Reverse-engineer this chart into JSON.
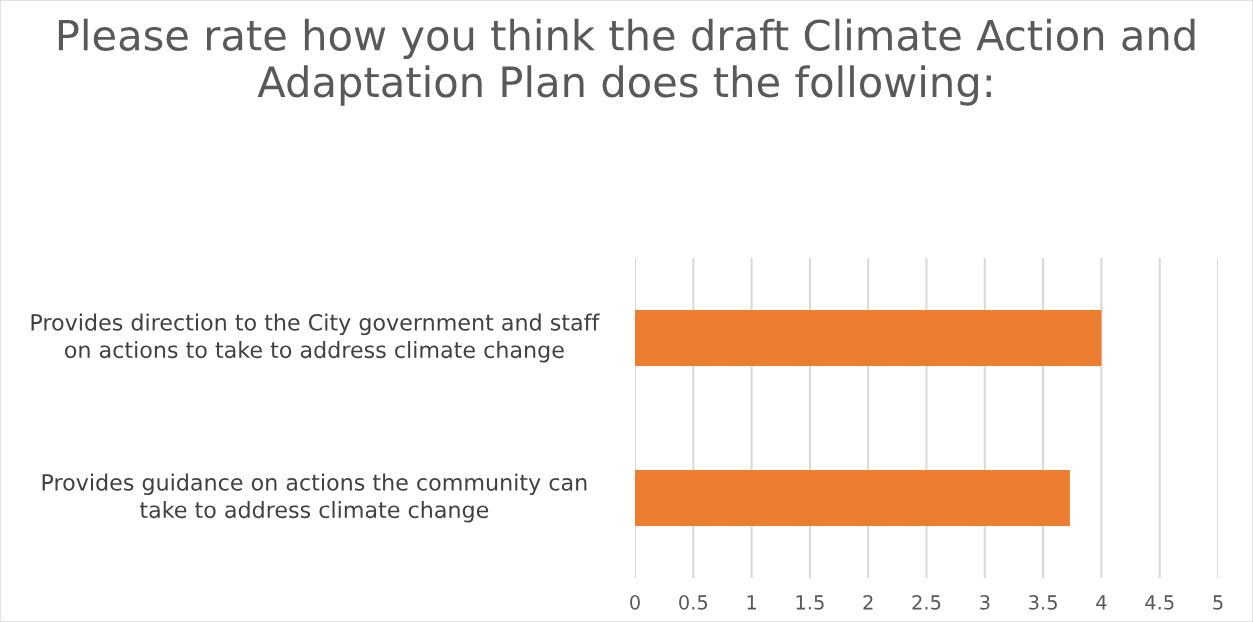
{
  "chart_data": {
    "type": "bar",
    "orientation": "horizontal",
    "title": "Please rate how you think the draft Climate Action and Adaptation Plan does the following:",
    "categories": [
      "Provides direction to the City government and staff on actions to take to address climate change",
      "Provides guidance on actions the community can take to address climate change"
    ],
    "values": [
      4.0,
      3.73
    ],
    "color": "#ed7d31",
    "xlim": [
      0,
      5
    ],
    "xticks": [
      0,
      0.5,
      1,
      1.5,
      2,
      2.5,
      3,
      3.5,
      4,
      4.5,
      5
    ],
    "grid": "x"
  }
}
